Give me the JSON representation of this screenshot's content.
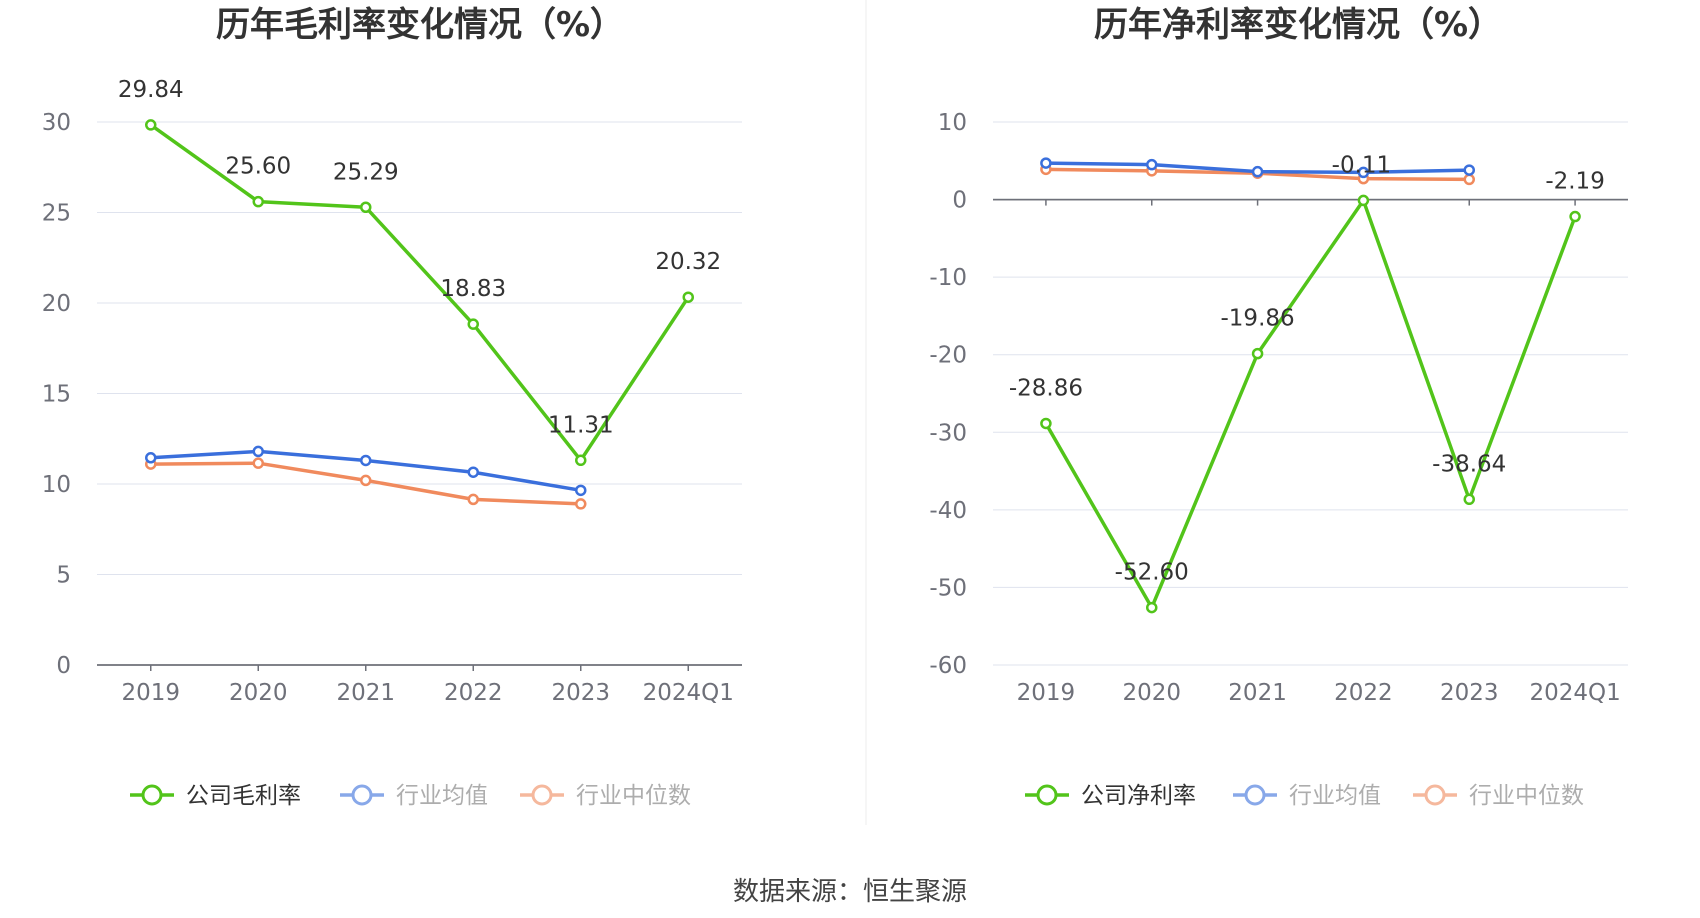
{
  "colors": {
    "company": "#52c41a",
    "avg": "#3a6fdc",
    "median": "#f08a5d",
    "grid": "#dfe3ee",
    "axis": "#6e7079"
  },
  "source_text": "数据来源：恒生聚源",
  "chart_data": [
    {
      "type": "line",
      "title": "历年毛利率变化情况（%）",
      "categories": [
        "2019",
        "2020",
        "2021",
        "2022",
        "2023",
        "2024Q1"
      ],
      "ylim": [
        0,
        30
      ],
      "yticks": [
        0,
        5,
        10,
        15,
        20,
        25,
        30
      ],
      "legend_position": "bottom",
      "series": [
        {
          "name": "公司毛利率",
          "color": "#52c41a",
          "values": [
            29.84,
            25.6,
            25.29,
            18.83,
            11.31,
            20.32
          ],
          "labels": [
            "29.84",
            "25.60",
            "25.29",
            "18.83",
            "11.31",
            "20.32"
          ]
        },
        {
          "name": "行业均值",
          "color": "#3a6fdc",
          "values": [
            11.45,
            11.8,
            11.3,
            10.65,
            9.65,
            null
          ]
        },
        {
          "name": "行业中位数",
          "color": "#f08a5d",
          "values": [
            11.1,
            11.15,
            10.2,
            9.15,
            8.9,
            null
          ]
        }
      ]
    },
    {
      "type": "line",
      "title": "历年净利率变化情况（%）",
      "categories": [
        "2019",
        "2020",
        "2021",
        "2022",
        "2023",
        "2024Q1"
      ],
      "ylim": [
        -60,
        10
      ],
      "yticks": [
        -60,
        -50,
        -40,
        -30,
        -20,
        -10,
        0,
        10
      ],
      "legend_position": "bottom",
      "series": [
        {
          "name": "公司净利率",
          "color": "#52c41a",
          "values": [
            -28.86,
            -52.6,
            -19.86,
            -0.11,
            -38.64,
            -2.19
          ],
          "labels": [
            "-28.86",
            "-52.60",
            "-19.86",
            "-0.11",
            "-38.64",
            "-2.19"
          ]
        },
        {
          "name": "行业均值",
          "color": "#3a6fdc",
          "values": [
            4.7,
            4.5,
            3.6,
            3.5,
            3.8,
            null
          ]
        },
        {
          "name": "行业中位数",
          "color": "#f08a5d",
          "values": [
            3.9,
            3.7,
            3.4,
            2.7,
            2.6,
            null
          ]
        }
      ]
    }
  ]
}
